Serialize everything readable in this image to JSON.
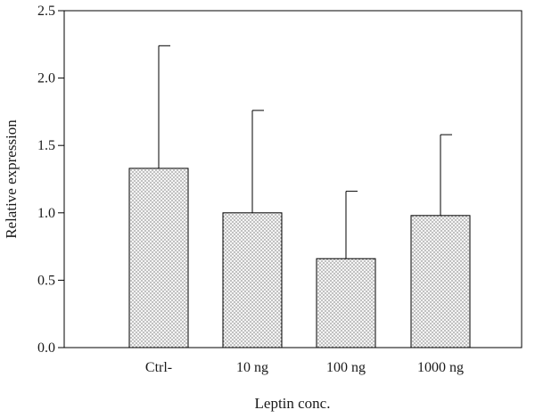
{
  "chart_data": {
    "type": "bar",
    "title": "",
    "xlabel": "Leptin conc.",
    "ylabel": "Relative expression",
    "categories": [
      "Ctrl-",
      "10 ng",
      "100 ng",
      "1000 ng"
    ],
    "values": [
      1.33,
      1.0,
      0.66,
      0.98
    ],
    "error_upper": [
      2.24,
      1.76,
      1.16,
      1.58
    ],
    "ylim": [
      0,
      2.5
    ],
    "yticks": [
      "0.0",
      "0.5",
      "1.0",
      "1.5",
      "2.0",
      "2.5"
    ],
    "ytick_values": [
      0,
      0.5,
      1.0,
      1.5,
      2.0,
      2.5
    ],
    "grid": false,
    "legend": "none",
    "bar_fill": "dotted",
    "colors": {
      "axis": "#000000",
      "bar_fill": "#f2f2f2",
      "dots": "#555555"
    }
  }
}
